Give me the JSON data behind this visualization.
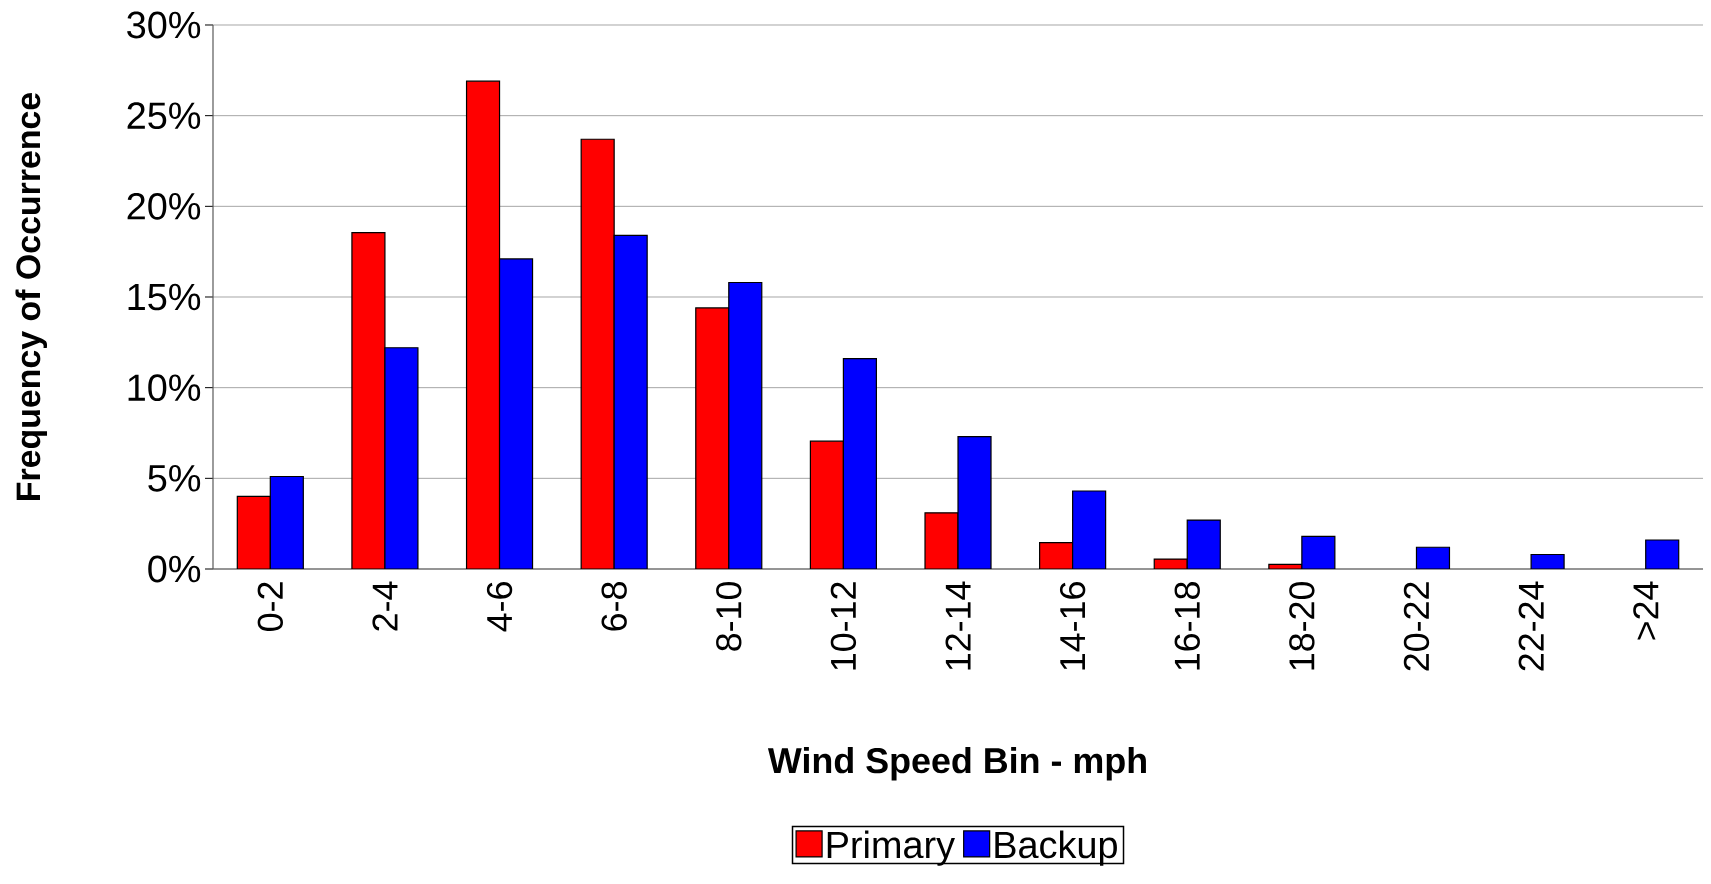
{
  "chart_data": {
    "type": "bar",
    "xlabel": "Wind Speed Bin - mph",
    "ylabel": "Frequency of Occurrence",
    "categories": [
      "0-2",
      "2-4",
      "4-6",
      "6-8",
      "8-10",
      "10-12",
      "12-14",
      "14-16",
      "16-18",
      "18-20",
      "20-22",
      "22-24",
      ">24"
    ],
    "series": [
      {
        "name": "Primary",
        "color": "#ff0000",
        "values": [
          4.0,
          18.55,
          26.9,
          23.7,
          14.4,
          7.05,
          3.1,
          1.45,
          0.55,
          0.25,
          null,
          null,
          null
        ]
      },
      {
        "name": "Backup",
        "color": "#0000ff",
        "values": [
          5.1,
          12.2,
          17.1,
          18.4,
          15.8,
          11.6,
          7.3,
          4.3,
          2.7,
          1.8,
          1.2,
          0.8,
          1.6
        ]
      }
    ],
    "ylim": [
      0,
      30
    ],
    "yticks": [
      {
        "value": 0,
        "label": "0%"
      },
      {
        "value": 5,
        "label": "5%"
      },
      {
        "value": 10,
        "label": "10%"
      },
      {
        "value": 15,
        "label": "15%"
      },
      {
        "value": 20,
        "label": "20%"
      },
      {
        "value": 25,
        "label": "25%"
      },
      {
        "value": 30,
        "label": "30%"
      }
    ],
    "grid": "y",
    "legend": "bottom"
  }
}
